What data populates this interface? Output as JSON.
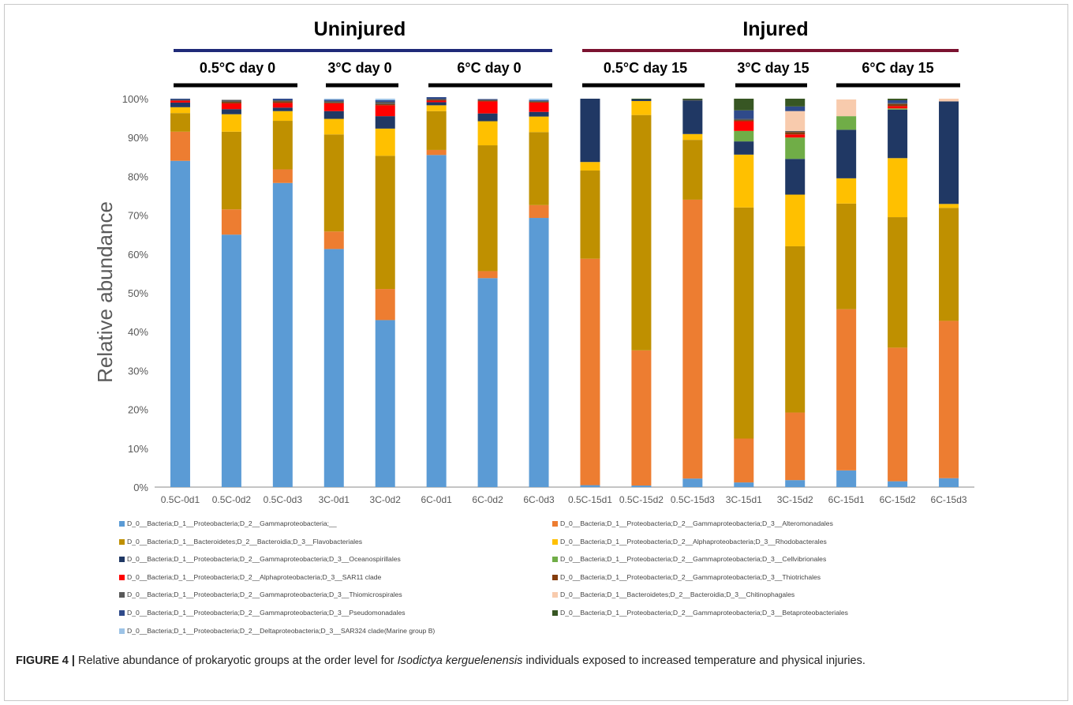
{
  "groups": [
    {
      "label": "Uninjured",
      "color": "#1f2a78"
    },
    {
      "label": "Injured",
      "color": "#7b1230"
    }
  ],
  "subgroups": [
    "0.5°C day 0",
    "3°C day 0",
    "6°C day 0",
    "0.5°C day 15",
    "3°C day 15",
    "6°C day 15"
  ],
  "caption": {
    "label": "FIGURE 4 |",
    "text_before": " Relative abundance of prokaryotic groups at the order level for ",
    "species": "Isodictya kerguelenensis",
    "text_after": " individuals exposed to increased temperature and physical injuries."
  },
  "chart_data": {
    "type": "bar",
    "stacked": true,
    "ylabel": "Relative abundance",
    "ylim": [
      0,
      100
    ],
    "yticks": [
      "0%",
      "10%",
      "20%",
      "30%",
      "40%",
      "50%",
      "60%",
      "70%",
      "80%",
      "90%",
      "100%"
    ],
    "categories": [
      "0.5C-0d1",
      "0.5C-0d2",
      "0.5C-0d3",
      "3C-0d1",
      "3C-0d2",
      "6C-0d1",
      "6C-0d2",
      "6C-0d3",
      "0.5C-15d1",
      "0.5C-15d2",
      "0.5C-15d3",
      "3C-15d1",
      "3C-15d2",
      "6C-15d1",
      "6C-15d2",
      "6C-15d3"
    ],
    "series": [
      {
        "name": "D_0__Bacteria;D_1__Proteobacteria;D_2__Gammaproteobacteria;__",
        "color": "#5b9bd5",
        "values": [
          84,
          65,
          78.3,
          61.3,
          43,
          85.5,
          53.8,
          69.3,
          0.5,
          0.4,
          2.2,
          1.2,
          1.8,
          4.3,
          1.5,
          2.3
        ]
      },
      {
        "name": "D_0__Bacteria;D_1__Proteobacteria;D_2__Gammaproteobacteria;D_3__Alteromonadales",
        "color": "#ed7d31",
        "values": [
          7.5,
          6.5,
          3.5,
          4.5,
          8,
          1.3,
          1.8,
          3.3,
          58.3,
          34.8,
          71.8,
          11.3,
          17.4,
          41.5,
          34.4,
          40.5
        ]
      },
      {
        "name": "D_0__Bacteria;D_1__Bacteroidetes;D_2__Bacteroidia;D_3__Flavobacteriales",
        "color": "#bf9000",
        "values": [
          4.8,
          20,
          12.5,
          25,
          34.3,
          10,
          32.4,
          18.8,
          22.7,
          60.6,
          15.4,
          59.5,
          42.8,
          27.2,
          33.6,
          29.1
        ]
      },
      {
        "name": "D_0__Bacteria;D_1__Proteobacteria;D_2__Alphaproteobacteria;D_3__Rhodobacterales",
        "color": "#ffc000",
        "values": [
          1.5,
          4.5,
          2.5,
          4,
          7,
          1.5,
          6.2,
          4,
          2.2,
          3.6,
          1.5,
          13.6,
          13.3,
          6.5,
          15.2,
          1
        ]
      },
      {
        "name": "D_0__Bacteria;D_1__Proteobacteria;D_2__Gammaproteobacteria;D_3__Oceanospirillales",
        "color": "#203864",
        "values": [
          1.2,
          1.3,
          0.9,
          2,
          3.2,
          0.8,
          2,
          1.2,
          16.3,
          0.4,
          8.6,
          3.4,
          9.2,
          12.5,
          12.5,
          26.4
        ]
      },
      {
        "name": "D_0__Bacteria;D_1__Proteobacteria;D_2__Gammaproteobacteria;D_3__Cellvibrionales",
        "color": "#70ad47",
        "values": [
          0,
          0,
          0,
          0,
          0,
          0,
          0,
          0,
          0,
          0,
          0,
          2.7,
          5.5,
          3.5,
          0.3,
          0
        ]
      },
      {
        "name": "D_0__Bacteria;D_1__Proteobacteria;D_2__Alphaproteobacteria;D_3__SAR11 clade",
        "color": "#ff0000",
        "values": [
          0.5,
          1.5,
          1.2,
          2,
          2.8,
          0.4,
          3.1,
          2.4,
          0,
          0,
          0,
          2.5,
          0.8,
          0,
          0.6,
          0
        ]
      },
      {
        "name": "D_0__Bacteria;D_1__Proteobacteria;D_2__Gammaproteobacteria;D_3__Thiotrichales",
        "color": "#843c0c",
        "values": [
          0,
          0.4,
          0.4,
          0.2,
          0.3,
          0.2,
          0.2,
          0.2,
          0,
          0,
          0,
          0.3,
          0.6,
          0,
          0.5,
          0
        ]
      },
      {
        "name": "D_0__Bacteria;D_1__Proteobacteria;D_2__Gammaproteobacteria;D_3__Thiomicrospirales",
        "color": "#595959",
        "values": [
          0.2,
          0.5,
          0.3,
          0.4,
          0.6,
          0.2,
          0.2,
          0.2,
          0,
          0,
          0.2,
          0.3,
          0.3,
          0,
          0.3,
          0
        ]
      },
      {
        "name": "D_0__Bacteria;D_1__Bacteroidetes;D_2__Bacteroidia;D_3__Chitinophagales",
        "color": "#f8cbad",
        "values": [
          0,
          0,
          0,
          0,
          0,
          0,
          0,
          0,
          0,
          0,
          0,
          0,
          5.1,
          4.3,
          0,
          0.7
        ]
      },
      {
        "name": "D_0__Bacteria;D_1__Proteobacteria;D_2__Gammaproteobacteria;D_3__Pseudomonadales",
        "color": "#2f4a8a",
        "values": [
          0.3,
          0,
          0.4,
          0.3,
          0.4,
          0.5,
          0.2,
          0.2,
          0,
          0,
          0,
          2.2,
          1.2,
          0,
          0.7,
          0
        ]
      },
      {
        "name": "D_0__Bacteria;D_1__Proteobacteria;D_2__Gammaproteobacteria;D_3__Betaproteobacteriales",
        "color": "#375623",
        "values": [
          0,
          0,
          0,
          0,
          0,
          0,
          0,
          0,
          0,
          0.2,
          0.3,
          3,
          2,
          0,
          0.4,
          0
        ]
      },
      {
        "name": "D_0__Bacteria;D_1__Proteobacteria;D_2__Deltaproteobacteria;D_3__SAR324 clade(Marine group B)",
        "color": "#9dc3e6",
        "values": [
          0,
          0,
          0,
          0.3,
          0.4,
          0,
          0,
          0.4,
          0,
          0,
          0,
          0,
          0,
          0,
          0,
          0
        ]
      }
    ]
  }
}
